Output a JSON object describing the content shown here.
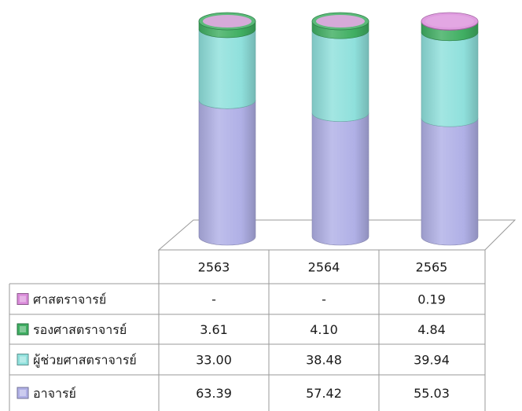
{
  "chart_data": {
    "type": "bar",
    "stacked": true,
    "style": "3d-cylinder",
    "unit": "%",
    "ylim": [
      0,
      100
    ],
    "categories": [
      "2563",
      "2564",
      "2565"
    ],
    "series": [
      {
        "name": "ศาสตราจารย์",
        "values": [
          null,
          null,
          0.19
        ],
        "display": [
          "-",
          "-",
          "0.19"
        ],
        "color": "#d98ad9"
      },
      {
        "name": "รองศาสตราจารย์",
        "values": [
          3.61,
          4.1,
          4.84
        ],
        "display": [
          "3.61",
          "4.10",
          "4.84"
        ],
        "color": "#3fae62"
      },
      {
        "name": "ผู้ช่วยศาสตราจารย์",
        "values": [
          33.0,
          38.48,
          39.94
        ],
        "display": [
          "33.00",
          "38.48",
          "39.94"
        ],
        "color": "#8fe0dc"
      },
      {
        "name": "อาจารย์",
        "values": [
          63.39,
          57.42,
          55.03
        ],
        "display": [
          "63.39",
          "57.42",
          "55.03"
        ],
        "color": "#b0b0e6"
      }
    ],
    "legend": "table-left",
    "data_table": true
  }
}
